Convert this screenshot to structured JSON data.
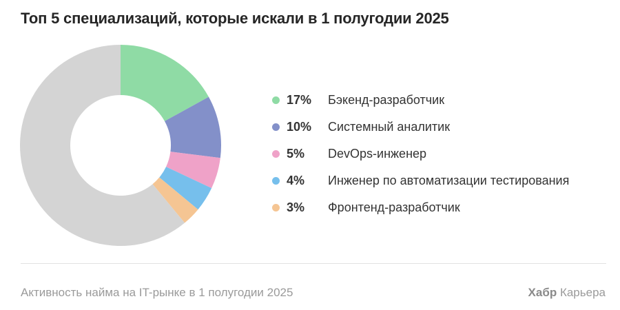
{
  "title": "Топ 5 специализаций, которые искали в 1 полугодии 2025",
  "chart_data": {
    "type": "pie",
    "donut": true,
    "title": "Топ 5 специализаций, которые искали в 1 полугодии 2025",
    "legend_position": "right",
    "slices": [
      {
        "name": "Бэкенд-разработчик",
        "value": 17,
        "label": "17%",
        "color": "#8fdba5"
      },
      {
        "name": "Системный аналитик",
        "value": 10,
        "label": "10%",
        "color": "#8390c9"
      },
      {
        "name": "DevOps-инженер",
        "value": 5,
        "label": "5%",
        "color": "#efa2c8"
      },
      {
        "name": "Инженер по автоматизации тестирования",
        "value": 4,
        "label": "4%",
        "color": "#76bfec"
      },
      {
        "name": "Фронтенд-разработчик",
        "value": 3,
        "label": "3%",
        "color": "#f5c593"
      }
    ],
    "remainder": {
      "value": 61,
      "color": "#d4d4d4"
    }
  },
  "footer": {
    "caption": "Активность найма на IT-рынке в 1 полугодии 2025",
    "brand_bold": "Хабр",
    "brand_regular": "Карьера"
  }
}
